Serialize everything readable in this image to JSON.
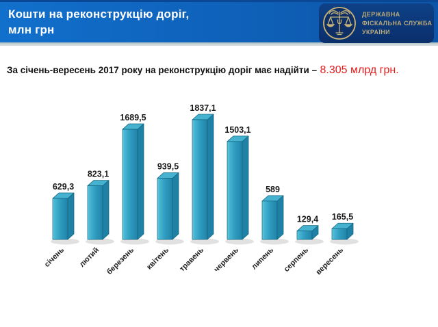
{
  "header": {
    "title_line1": "Кошти на реконструкцію доріг,",
    "title_line2": "млн грн",
    "org_line1": "ДЕРЖАВНА",
    "org_line2": "ФІСКАЛЬНА СЛУЖБА",
    "org_line3": "УКРАЇНИ",
    "bg_left": "#1170cc",
    "bg_right": "#0d55a8",
    "badge_bg": "#0c3a7c",
    "logo_gold": "#c9b478"
  },
  "subtitle": {
    "prefix": "За січень-вересень 2017 року на реконструкцію доріг має надійти –",
    "highlight": " 8.305 млрд грн.",
    "highlight_color": "#e8191c"
  },
  "chart_data": {
    "type": "bar",
    "style": "3d-column",
    "title": "Кошти на реконструкцію доріг, млн грн",
    "unit": "млн грн",
    "categories": [
      "січень",
      "лютий",
      "березень",
      "квітень",
      "травень",
      "червень",
      "липень",
      "серпень",
      "вересень"
    ],
    "values": [
      629.3,
      823.1,
      1689.5,
      939.5,
      1837.1,
      1503.1,
      589,
      129.4,
      165.5
    ],
    "value_labels": [
      "629,3",
      "823,1",
      "1689,5",
      "939,5",
      "1837,1",
      "1503,1",
      "589",
      "129,4",
      "165,5"
    ],
    "ylim": [
      0,
      2000
    ],
    "grid": false,
    "legend": false,
    "background": "#ffffff",
    "colors": {
      "front": "#2f9cc0",
      "front_light": "#6fd0e4",
      "front_dark": "#2183a8",
      "top": "#45b2d0",
      "side": "#1f81a6",
      "outline": "#15657f",
      "shadow": "#c9c9c9",
      "value_label": "#1a1a1a",
      "category_label": "#222222"
    }
  }
}
